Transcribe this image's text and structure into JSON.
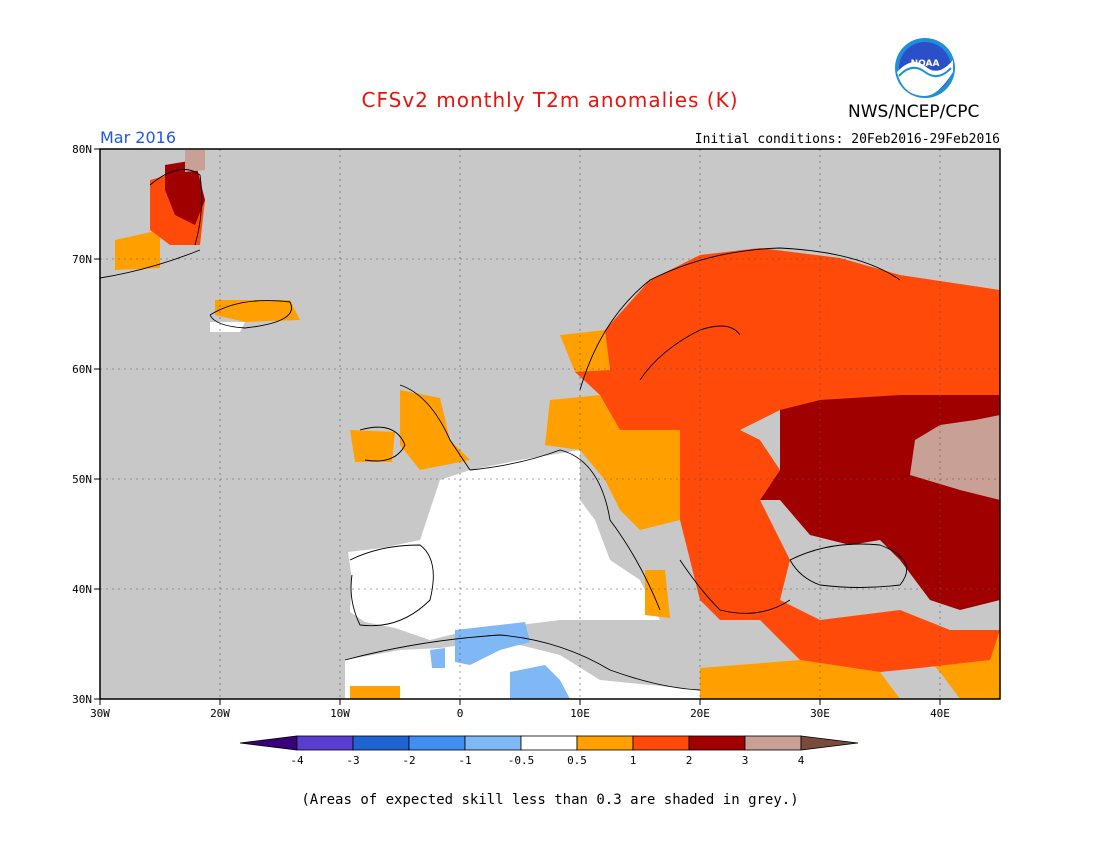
{
  "title": "CFSv2 monthly T2m anomalies (K)",
  "agency": "NWS/NCEP/CPC",
  "logo_text": "NOAA",
  "month_label": "Mar 2016",
  "initial_conditions": "Initial conditions: 20Feb2016-29Feb2016",
  "footnote": "(Areas of expected skill less than 0.3 are shaded in grey.)",
  "colors": {
    "title": "#e8130d",
    "month": "#1f56e6",
    "ocean_grey": "#c8c8c8",
    "land_white": "#ffffff"
  },
  "map": {
    "lon_range": [
      -30,
      45
    ],
    "lat_range": [
      30,
      80
    ],
    "lon_labels": [
      "30W",
      "20W",
      "10W",
      "0",
      "10E",
      "20E",
      "30E",
      "40E"
    ],
    "lat_labels": [
      "30N",
      "40N",
      "50N",
      "60N",
      "70N",
      "80N"
    ]
  },
  "colorbar": {
    "labels": [
      "-4",
      "-3",
      "-2",
      "-1",
      "-0.5",
      "0.5",
      "1",
      "2",
      "3",
      "4"
    ],
    "colors": [
      "#3a007a",
      "#5a3ed2",
      "#1f63d2",
      "#3f8ef0",
      "#7fb8f5",
      "#ffffff",
      "#ffa000",
      "#ff4a0a",
      "#a00000",
      "#c9a096",
      "#7a4a3a"
    ]
  }
}
